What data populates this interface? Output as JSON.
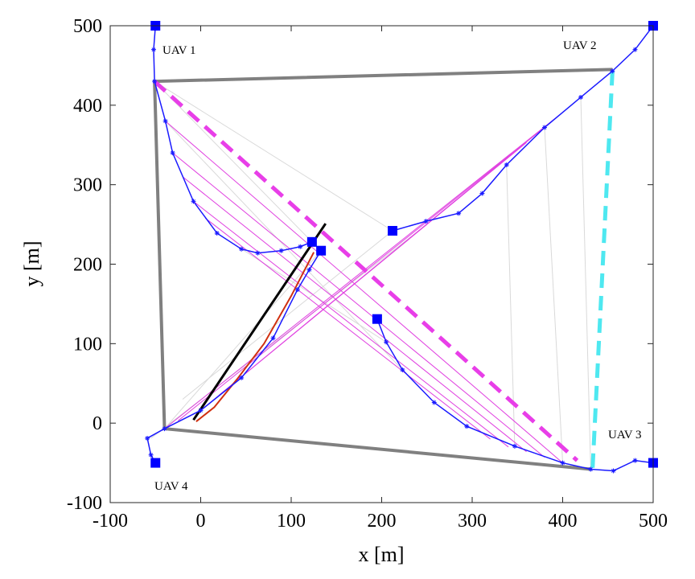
{
  "chart_data": {
    "type": "trajectory",
    "xlabel": "x [m]",
    "ylabel": "y [m]",
    "xlim": [
      -100,
      500
    ],
    "ylim": [
      -100,
      500
    ],
    "xticks": [
      -100,
      0,
      100,
      200,
      300,
      400,
      500
    ],
    "yticks": [
      -100,
      0,
      100,
      200,
      300,
      400,
      500
    ],
    "annotations": [
      "UAV 1",
      "UAV 2",
      "UAV 3",
      "UAV 4"
    ],
    "series": [
      {
        "color": "#d9d9d9",
        "style": "solid",
        "width": 1,
        "x": [
          -51,
          212
        ],
        "y": [
          430,
          242
        ]
      },
      {
        "color": "#d9d9d9",
        "style": "solid",
        "width": 1,
        "x": [
          -39,
          223
        ],
        "y": [
          380,
          67
        ]
      },
      {
        "color": "#d9d9d9",
        "style": "solid",
        "width": 1,
        "x": [
          -40,
          133
        ],
        "y": [
          -7,
          217
        ]
      },
      {
        "color": "#d9d9d9",
        "style": "solid",
        "width": 1,
        "x": [
          -20,
          212
        ],
        "y": [
          30,
          242
        ]
      },
      {
        "color": "#d9d9d9",
        "style": "solid",
        "width": 1,
        "x": [
          -55,
          250
        ],
        "y": [
          -19,
          250
        ]
      },
      {
        "color": "#d9d9d9",
        "style": "solid",
        "width": 1,
        "x": [
          420,
          431
        ],
        "y": [
          410,
          -58
        ]
      },
      {
        "color": "#d9d9d9",
        "style": "solid",
        "width": 1,
        "x": [
          380,
          400
        ],
        "y": [
          372,
          -50
        ]
      },
      {
        "color": "#d9d9d9",
        "style": "solid",
        "width": 1,
        "x": [
          338,
          347
        ],
        "y": [
          325,
          -29
        ]
      },
      {
        "color": "#d9d9d9",
        "style": "solid",
        "width": 1,
        "x": [
          -51,
          123
        ],
        "y": [
          430,
          228
        ]
      },
      {
        "color": "#d9d9d9",
        "style": "solid",
        "width": 1,
        "x": [
          18,
          205
        ],
        "y": [
          239,
          102
        ]
      },
      {
        "color": "#e040e0",
        "style": "solid",
        "width": 1,
        "x": [
          -39,
          400
        ],
        "y": [
          380,
          -50
        ]
      },
      {
        "color": "#e040e0",
        "style": "solid",
        "width": 1,
        "x": [
          -31,
          380
        ],
        "y": [
          340,
          -43
        ]
      },
      {
        "color": "#e040e0",
        "style": "solid",
        "width": 1,
        "x": [
          -20,
          360
        ],
        "y": [
          310,
          -36
        ]
      },
      {
        "color": "#e040e0",
        "style": "solid",
        "width": 1,
        "x": [
          -8,
          340
        ],
        "y": [
          279,
          -30
        ]
      },
      {
        "color": "#e040e0",
        "style": "solid",
        "width": 1,
        "x": [
          5,
          320
        ],
        "y": [
          258,
          -20
        ]
      },
      {
        "color": "#e040e0",
        "style": "solid",
        "width": 1,
        "x": [
          -40,
          400
        ],
        "y": [
          -7,
          391
        ]
      },
      {
        "color": "#e040e0",
        "style": "solid",
        "width": 1,
        "x": [
          -25,
          380
        ],
        "y": [
          3,
          372
        ]
      },
      {
        "color": "#e040e0",
        "style": "solid",
        "width": 1,
        "x": [
          0,
          360
        ],
        "y": [
          16,
          353
        ]
      },
      {
        "color": "#e040e0",
        "style": "solid",
        "width": 1,
        "x": [
          20,
          340
        ],
        "y": [
          35,
          335
        ]
      },
      {
        "color": "#808080",
        "style": "solid",
        "width": 4,
        "x": [
          455,
          -51,
          -40,
          431
        ],
        "y": [
          445,
          430,
          -7,
          -58
        ]
      },
      {
        "color": "#e83ee8",
        "style": "dashed",
        "width": 5,
        "x": [
          -51,
          416
        ],
        "y": [
          430,
          -47
        ]
      },
      {
        "color": "#4ee8f0",
        "style": "dashed",
        "width": 5,
        "x": [
          455,
          433
        ],
        "y": [
          443,
          -58
        ]
      },
      {
        "color": "#000000",
        "style": "solid",
        "width": 3,
        "x": [
          -8,
          138
        ],
        "y": [
          4,
          251
        ]
      },
      {
        "color": "#d03010",
        "style": "solid",
        "width": 2,
        "x": [
          -5,
          15,
          40,
          70,
          100,
          125
        ],
        "y": [
          2,
          20,
          55,
          100,
          160,
          215
        ]
      },
      {
        "color": "#1a1aff",
        "style": "solid",
        "width": 1.5,
        "marker": "star",
        "ends": "square",
        "x": [
          -50,
          -52,
          -51,
          -39,
          -31,
          -8,
          18,
          45,
          63,
          89,
          110,
          123
        ],
        "y": [
          500,
          470,
          430,
          380,
          340,
          279,
          239,
          219,
          214,
          217,
          222,
          228
        ]
      },
      {
        "color": "#1a1aff",
        "style": "solid",
        "width": 1.5,
        "marker": "star",
        "ends": "square",
        "x": [
          500,
          480,
          455,
          420,
          380,
          338,
          311,
          285,
          249,
          212
        ],
        "y": [
          500,
          470,
          443,
          410,
          372,
          325,
          289,
          264,
          254,
          242
        ]
      },
      {
        "color": "#1a1aff",
        "style": "solid",
        "width": 1.5,
        "marker": "star",
        "ends": "square",
        "x": [
          500,
          480,
          456,
          431,
          400,
          347,
          294,
          258,
          223,
          205,
          195
        ],
        "y": [
          -50,
          -47,
          -60,
          -58,
          -50,
          -29,
          -4,
          26,
          67,
          102,
          131
        ]
      },
      {
        "color": "#1a1aff",
        "style": "solid",
        "width": 1.5,
        "marker": "star",
        "ends": "square",
        "x": [
          -50,
          -55,
          -59,
          -40,
          0,
          45,
          80,
          107,
          120,
          133
        ],
        "y": [
          -50,
          -40,
          -19,
          -7,
          16,
          57,
          107,
          168,
          193,
          217
        ]
      }
    ]
  }
}
